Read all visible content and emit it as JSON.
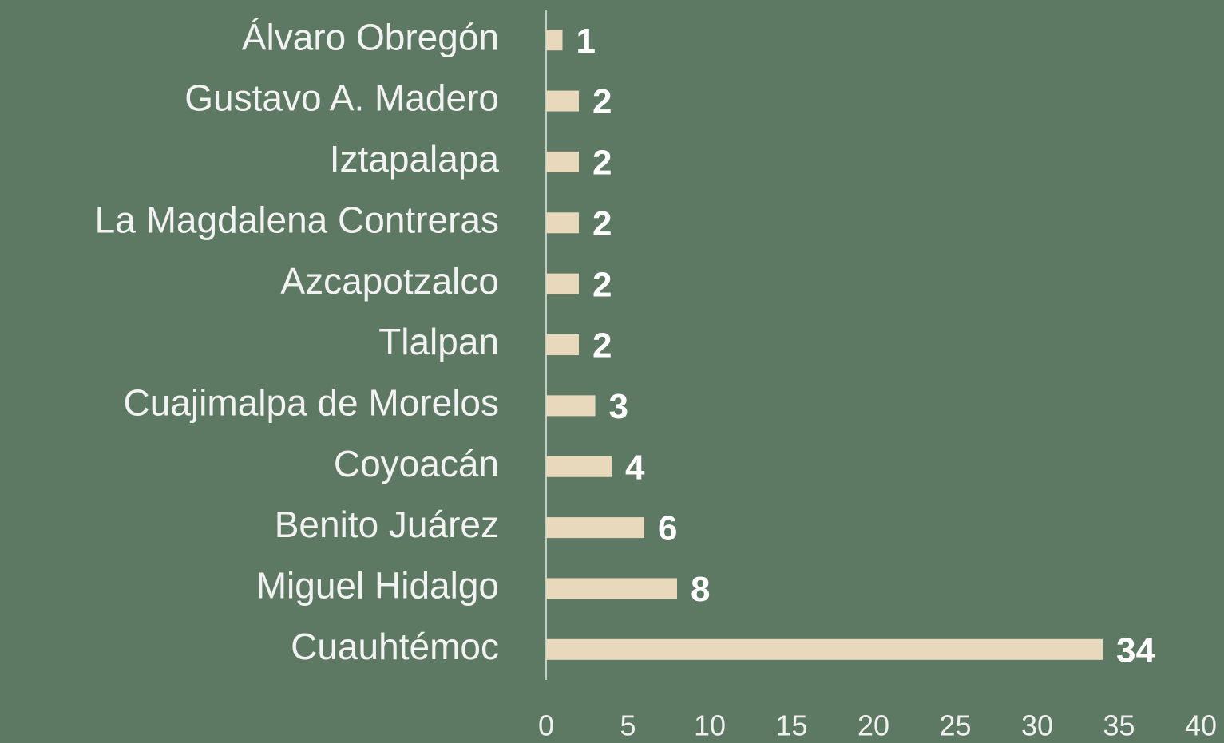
{
  "chart_data": {
    "type": "bar",
    "orientation": "horizontal",
    "categories": [
      "Álvaro Obregón",
      "Gustavo A. Madero",
      "Iztapalapa",
      "La Magdalena Contreras",
      "Azcapotzalco",
      "Tlalpan",
      "Cuajimalpa de Morelos",
      "Coyoacán",
      "Benito Juárez",
      "Miguel Hidalgo",
      "Cuauhtémoc"
    ],
    "values": [
      1,
      2,
      2,
      2,
      2,
      2,
      3,
      4,
      6,
      8,
      34
    ],
    "color": "#e8d9bc",
    "xlim": [
      0,
      40
    ],
    "xticks": [
      0,
      5,
      10,
      15,
      20,
      25,
      30,
      35,
      40
    ],
    "grid": false
  }
}
